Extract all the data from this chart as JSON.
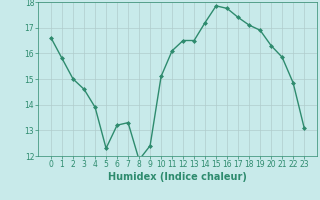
{
  "x": [
    0,
    1,
    2,
    3,
    4,
    5,
    6,
    7,
    8,
    9,
    10,
    11,
    12,
    13,
    14,
    15,
    16,
    17,
    18,
    19,
    20,
    21,
    22,
    23
  ],
  "y": [
    16.6,
    15.8,
    15.0,
    14.6,
    13.9,
    12.3,
    13.2,
    13.3,
    11.85,
    12.4,
    15.1,
    16.1,
    16.5,
    16.5,
    17.2,
    17.85,
    17.75,
    17.4,
    17.1,
    16.9,
    16.3,
    15.85,
    14.85,
    13.1
  ],
  "line_color": "#2e8b6e",
  "marker": "D",
  "marker_size": 2.0,
  "bg_color": "#c8eaea",
  "grid_color": "#b0cccc",
  "xlabel": "Humidex (Indice chaleur)",
  "ylim": [
    12,
    18
  ],
  "yticks": [
    12,
    13,
    14,
    15,
    16,
    17,
    18
  ],
  "xticks": [
    0,
    1,
    2,
    3,
    4,
    5,
    6,
    7,
    8,
    9,
    10,
    11,
    12,
    13,
    14,
    15,
    16,
    17,
    18,
    19,
    20,
    21,
    22,
    23
  ],
  "tick_color": "#2e8b6e",
  "label_color": "#2e8b6e",
  "tick_fontsize": 5.5,
  "xlabel_fontsize": 7.0,
  "linewidth": 1.0
}
